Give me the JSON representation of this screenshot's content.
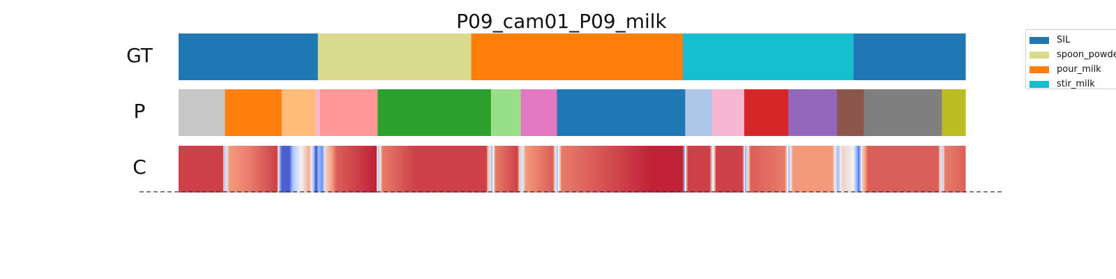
{
  "chart_data": {
    "type": "segmentation-timeline",
    "title": "P09_cam01_P09_milk",
    "rows": [
      {
        "label": "GT",
        "segments": [
          {
            "start": 0.0,
            "end": 0.177,
            "color": "#1f77b4"
          },
          {
            "start": 0.177,
            "end": 0.372,
            "color": "#dbdb8d"
          },
          {
            "start": 0.372,
            "end": 0.641,
            "color": "#ff7f0e"
          },
          {
            "start": 0.641,
            "end": 0.858,
            "color": "#17becf"
          },
          {
            "start": 0.858,
            "end": 1.0,
            "color": "#1f77b4"
          }
        ]
      },
      {
        "label": "P",
        "segments": [
          {
            "start": 0.0,
            "end": 0.059,
            "color": "#c7c7c7"
          },
          {
            "start": 0.059,
            "end": 0.131,
            "color": "#ff7f0e"
          },
          {
            "start": 0.131,
            "end": 0.174,
            "color": "#ffbb78"
          },
          {
            "start": 0.174,
            "end": 0.18,
            "color": "#f7b6d2"
          },
          {
            "start": 0.18,
            "end": 0.253,
            "color": "#ff9896"
          },
          {
            "start": 0.253,
            "end": 0.397,
            "color": "#2ca02c"
          },
          {
            "start": 0.397,
            "end": 0.435,
            "color": "#98df8a"
          },
          {
            "start": 0.435,
            "end": 0.481,
            "color": "#e377c2"
          },
          {
            "start": 0.481,
            "end": 0.644,
            "color": "#1f77b4"
          },
          {
            "start": 0.644,
            "end": 0.678,
            "color": "#aec7e8"
          },
          {
            "start": 0.678,
            "end": 0.719,
            "color": "#f7b6d2"
          },
          {
            "start": 0.719,
            "end": 0.775,
            "color": "#d62728"
          },
          {
            "start": 0.775,
            "end": 0.837,
            "color": "#9467bd"
          },
          {
            "start": 0.837,
            "end": 0.871,
            "color": "#8c564b"
          },
          {
            "start": 0.871,
            "end": 0.97,
            "color": "#7f7f7f"
          },
          {
            "start": 0.97,
            "end": 1.0,
            "color": "#bcbd22"
          }
        ]
      },
      {
        "label": "C",
        "confidence_stops": [
          {
            "t": 0.0,
            "v": 0.9
          },
          {
            "t": 0.055,
            "v": 0.9
          },
          {
            "t": 0.059,
            "v": 0.3
          },
          {
            "t": 0.063,
            "v": 0.75
          },
          {
            "t": 0.09,
            "v": 0.8
          },
          {
            "t": 0.124,
            "v": 0.9
          },
          {
            "t": 0.127,
            "v": 0.4
          },
          {
            "t": 0.13,
            "v": 0.05
          },
          {
            "t": 0.14,
            "v": 0.05
          },
          {
            "t": 0.145,
            "v": 0.35
          },
          {
            "t": 0.155,
            "v": 0.5
          },
          {
            "t": 0.165,
            "v": 0.7
          },
          {
            "t": 0.171,
            "v": 0.3
          },
          {
            "t": 0.174,
            "v": 0.0
          },
          {
            "t": 0.177,
            "v": 0.3
          },
          {
            "t": 0.182,
            "v": 0.15
          },
          {
            "t": 0.186,
            "v": 0.6
          },
          {
            "t": 0.2,
            "v": 0.85
          },
          {
            "t": 0.25,
            "v": 0.95
          },
          {
            "t": 0.253,
            "v": 0.3
          },
          {
            "t": 0.258,
            "v": 0.8
          },
          {
            "t": 0.3,
            "v": 0.9
          },
          {
            "t": 0.39,
            "v": 0.9
          },
          {
            "t": 0.397,
            "v": 0.3
          },
          {
            "t": 0.402,
            "v": 0.8
          },
          {
            "t": 0.43,
            "v": 0.9
          },
          {
            "t": 0.435,
            "v": 0.35
          },
          {
            "t": 0.44,
            "v": 0.75
          },
          {
            "t": 0.475,
            "v": 0.85
          },
          {
            "t": 0.48,
            "v": 0.3
          },
          {
            "t": 0.486,
            "v": 0.8
          },
          {
            "t": 0.6,
            "v": 0.95
          },
          {
            "t": 0.64,
            "v": 0.95
          },
          {
            "t": 0.642,
            "v": 0.2
          },
          {
            "t": 0.646,
            "v": 0.9
          },
          {
            "t": 0.675,
            "v": 0.9
          },
          {
            "t": 0.678,
            "v": 0.3
          },
          {
            "t": 0.682,
            "v": 0.9
          },
          {
            "t": 0.716,
            "v": 0.9
          },
          {
            "t": 0.72,
            "v": 0.25
          },
          {
            "t": 0.726,
            "v": 0.85
          },
          {
            "t": 0.77,
            "v": 0.8
          },
          {
            "t": 0.775,
            "v": 0.3
          },
          {
            "t": 0.78,
            "v": 0.75
          },
          {
            "t": 0.83,
            "v": 0.75
          },
          {
            "t": 0.837,
            "v": 0.3
          },
          {
            "t": 0.843,
            "v": 0.6
          },
          {
            "t": 0.857,
            "v": 0.5
          },
          {
            "t": 0.864,
            "v": 0.1
          },
          {
            "t": 0.868,
            "v": 0.6
          },
          {
            "t": 0.875,
            "v": 0.85
          },
          {
            "t": 0.965,
            "v": 0.85
          },
          {
            "t": 0.969,
            "v": 0.3
          },
          {
            "t": 0.973,
            "v": 0.8
          },
          {
            "t": 1.0,
            "v": 0.85
          }
        ]
      }
    ],
    "legend": {
      "placement": "top-right",
      "entries": [
        {
          "label": "SIL",
          "color": "#1f77b4"
        },
        {
          "label": "spoon_powder",
          "color": "#dbdb8d"
        },
        {
          "label": "pour_milk",
          "color": "#ff7f0e"
        },
        {
          "label": "stir_milk",
          "color": "#17becf"
        }
      ]
    },
    "baseline": "dashed"
  }
}
